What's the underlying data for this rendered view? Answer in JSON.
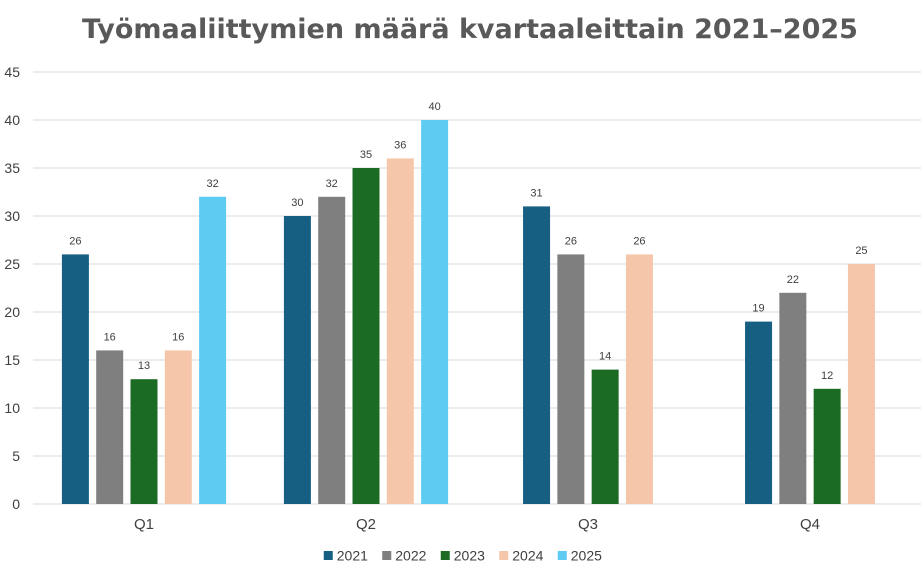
{
  "chart_data": {
    "type": "bar",
    "title": "Työmaaliittymien määrä kvartaaleittain 2021–2025",
    "xlabel": "",
    "ylabel": "",
    "categories": [
      "Q1",
      "Q2",
      "Q3",
      "Q4"
    ],
    "ylim": [
      0,
      45
    ],
    "yticks": [
      0,
      5,
      10,
      15,
      20,
      25,
      30,
      35,
      40,
      45
    ],
    "grid": true,
    "legend_position": "bottom",
    "series": [
      {
        "name": "2021",
        "color": "#175e83",
        "values": [
          26,
          30,
          31,
          19
        ]
      },
      {
        "name": "2022",
        "color": "#7f7f7f",
        "values": [
          16,
          32,
          26,
          22
        ]
      },
      {
        "name": "2023",
        "color": "#1c6b25",
        "values": [
          13,
          35,
          14,
          12
        ]
      },
      {
        "name": "2024",
        "color": "#f5c6aa",
        "values": [
          16,
          36,
          26,
          25
        ]
      },
      {
        "name": "2025",
        "color": "#5ecbf2",
        "values": [
          32,
          40,
          null,
          null
        ]
      }
    ]
  }
}
